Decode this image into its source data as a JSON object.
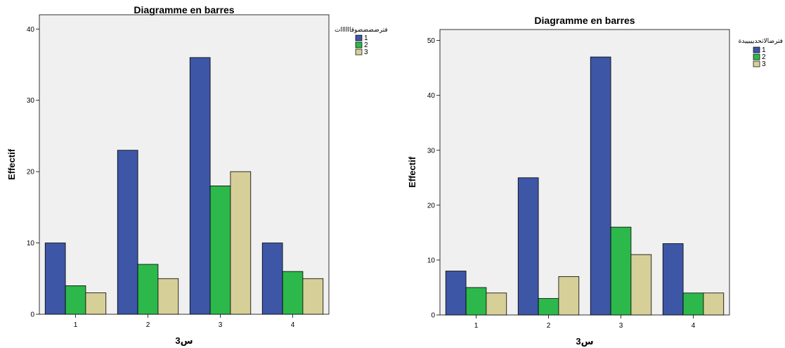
{
  "colors": {
    "1": "#3d56a6",
    "2": "#2db84b",
    "3": "#d6cf98",
    "plot_bg": "#f0f0f0"
  },
  "chart_data": [
    {
      "type": "bar",
      "title": "Diagramme en barres",
      "xlabel": "س3",
      "ylabel": "Effectif",
      "ylim": [
        0,
        42
      ],
      "yticks": [
        0,
        10,
        20,
        30,
        40
      ],
      "categories": [
        "1",
        "2",
        "3",
        "4"
      ],
      "legend_title": "فترضضضضوقاااااات",
      "legend_position": "right",
      "series": [
        {
          "name": "1",
          "values": [
            10,
            23,
            36,
            10
          ]
        },
        {
          "name": "2",
          "values": [
            4,
            7,
            18,
            6
          ]
        },
        {
          "name": "3",
          "values": [
            3,
            5,
            20,
            5
          ]
        }
      ]
    },
    {
      "type": "bar",
      "title": "Diagramme en barres",
      "xlabel": "س3",
      "ylabel": "Effectif",
      "ylim": [
        0,
        52
      ],
      "yticks": [
        0,
        10,
        20,
        30,
        40,
        50
      ],
      "categories": [
        "1",
        "2",
        "3",
        "4"
      ],
      "legend_title": "فترضالاتحديييييدة",
      "legend_position": "right",
      "series": [
        {
          "name": "1",
          "values": [
            8,
            25,
            47,
            13
          ]
        },
        {
          "name": "2",
          "values": [
            5,
            3,
            16,
            4
          ]
        },
        {
          "name": "3",
          "values": [
            4,
            7,
            11,
            4
          ]
        }
      ]
    }
  ]
}
